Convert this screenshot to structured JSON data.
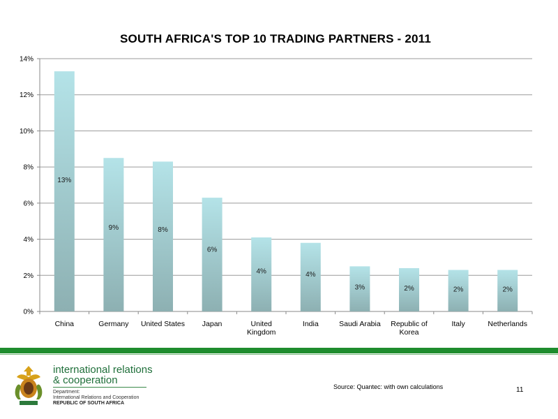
{
  "chart_data": {
    "type": "bar",
    "title": "SOUTH AFRICA'S TOP 10 TRADING PARTNERS - 2011",
    "categories": [
      "China",
      "Germany",
      "United States",
      "Japan",
      "United Kingdom",
      "India",
      "Saudi Arabia",
      "Republic of Korea",
      "Italy",
      "Netherlands"
    ],
    "category_lines": [
      [
        "China"
      ],
      [
        "Germany"
      ],
      [
        "United States"
      ],
      [
        "Japan"
      ],
      [
        "United",
        "Kingdom"
      ],
      [
        "India"
      ],
      [
        "Saudi Arabia"
      ],
      [
        "Republic of",
        "Korea"
      ],
      [
        "Italy"
      ],
      [
        "Netherlands"
      ]
    ],
    "values": [
      13.3,
      8.5,
      8.3,
      6.3,
      4.1,
      3.8,
      2.5,
      2.4,
      2.3,
      2.3
    ],
    "data_labels": [
      "13%",
      "9%",
      "8%",
      "6%",
      "4%",
      "4%",
      "3%",
      "2%",
      "2%",
      "2%"
    ],
    "yticks": [
      0,
      2,
      4,
      6,
      8,
      10,
      12,
      14
    ],
    "ytick_labels": [
      "0%",
      "2%",
      "4%",
      "6%",
      "8%",
      "10%",
      "12%",
      "14%"
    ],
    "ylim": [
      0,
      14
    ],
    "xlabel": "",
    "ylabel": "",
    "grid": true,
    "bar_color_top": "#b4e3e8",
    "bar_color_bottom": "#8db0b2"
  },
  "footer": {
    "org_line1": "international relations",
    "org_line2": "& cooperation",
    "dept_line1": "Department:",
    "dept_line2": "International Relations and Cooperation",
    "country": "REPUBLIC OF SOUTH AFRICA",
    "source": "Source: Quantec: with own calculations",
    "page_number": "11",
    "accent_green": "#1e8c2e"
  }
}
